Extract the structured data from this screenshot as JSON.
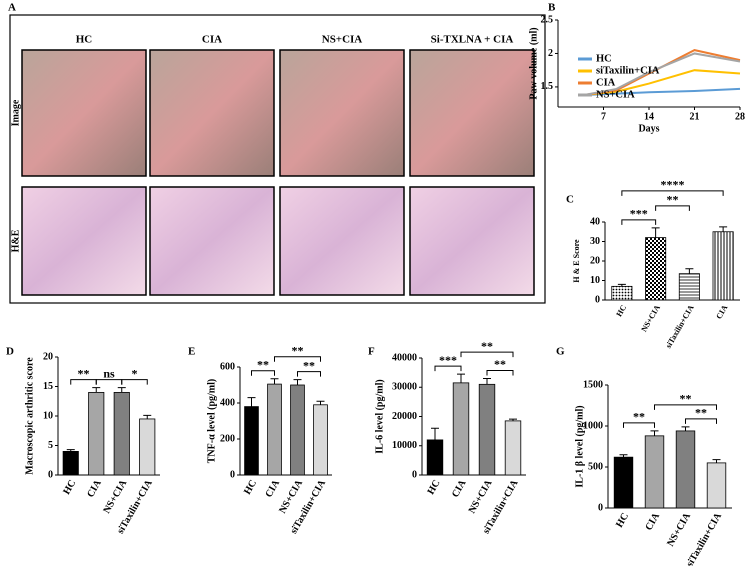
{
  "panel_a": {
    "label": "A",
    "columns": [
      "HC",
      "CIA",
      "NS+CIA",
      "Si-TXLNA + CIA"
    ],
    "rows": [
      "Image",
      "H&E"
    ]
  },
  "chart_data": [
    {
      "label": "B",
      "type": "line",
      "x_label": "Days",
      "y_label": "Paw volume (ml)",
      "x": [
        4,
        9,
        14,
        21,
        28
      ],
      "xlim": [
        0,
        28
      ],
      "xticks": [
        7,
        14,
        21,
        28
      ],
      "ylim": [
        1.2,
        2.5
      ],
      "yticks": [
        1.5,
        2,
        2.5
      ],
      "legend": "lower-left",
      "series": [
        {
          "name": "HC",
          "color": "#5b9bd5",
          "values": [
            1.38,
            1.4,
            1.42,
            1.44,
            1.47
          ]
        },
        {
          "name": "siTaxilin+CIA",
          "color": "#ffc000",
          "values": [
            1.38,
            1.43,
            1.55,
            1.75,
            1.7
          ]
        },
        {
          "name": "CIA",
          "color": "#ed7d31",
          "values": [
            1.38,
            1.45,
            1.7,
            2.05,
            1.9
          ]
        },
        {
          "name": "NS+CIA",
          "color": "#a5a5a5",
          "values": [
            1.38,
            1.47,
            1.72,
            2.0,
            1.88
          ]
        }
      ]
    },
    {
      "label": "C",
      "type": "bar",
      "y_label": "H & E Score",
      "categories": [
        "HC",
        "NS+CIA",
        "siTaxilin+CIA",
        "CIA"
      ],
      "values": [
        7,
        32,
        13.5,
        35
      ],
      "errors": [
        1,
        5,
        2.5,
        2.5
      ],
      "patterns": [
        "dots",
        "checker",
        "hlines",
        "vlines"
      ],
      "ylim": [
        0,
        40
      ],
      "yticks": [
        0,
        10,
        20,
        30,
        40
      ],
      "annotations": [
        "***",
        "**",
        "****"
      ]
    },
    {
      "label": "D",
      "type": "bar",
      "y_label": "Macroscopic arthritic score",
      "categories": [
        "HC",
        "CIA",
        "NS+CIA",
        "siTaxilin+CIA"
      ],
      "values": [
        4,
        14,
        14,
        9.5
      ],
      "errors": [
        0.3,
        0.8,
        0.8,
        0.6
      ],
      "colors": [
        "#000000",
        "#a6a6a6",
        "#808080",
        "#d9d9d9"
      ],
      "ylim": [
        0,
        20
      ],
      "yticks": [
        0,
        5,
        10,
        15,
        20
      ],
      "annotations": [
        "**",
        "ns",
        "*"
      ]
    },
    {
      "label": "E",
      "type": "bar",
      "y_label": "TNF-α level (pg/ml)",
      "categories": [
        "HC",
        "CIA",
        "NS+CIA",
        "siTaxilin+CIA"
      ],
      "values": [
        380,
        505,
        500,
        390
      ],
      "errors": [
        50,
        30,
        30,
        20
      ],
      "colors": [
        "#000000",
        "#a6a6a6",
        "#808080",
        "#d9d9d9"
      ],
      "ylim": [
        0,
        600
      ],
      "yticks": [
        0,
        200,
        400,
        600
      ],
      "annotations": [
        "**",
        "**",
        "**"
      ]
    },
    {
      "label": "F",
      "type": "bar",
      "y_label": "IL-6 level (pg/ml)",
      "categories": [
        "HC",
        "CIA",
        "NS+CIA",
        "siTaxilin+CIA"
      ],
      "values": [
        12000,
        31500,
        31000,
        18500
      ],
      "errors": [
        4000,
        3000,
        2000,
        600
      ],
      "colors": [
        "#000000",
        "#a6a6a6",
        "#808080",
        "#d9d9d9"
      ],
      "ylim": [
        0,
        40000
      ],
      "yticks": [
        0,
        10000,
        20000,
        30000,
        40000
      ],
      "annotations": [
        "***",
        "**",
        "**"
      ]
    },
    {
      "label": "G",
      "type": "bar",
      "y_label": "IL-1 β level (pg/ml)",
      "categories": [
        "HC",
        "CIA",
        "NS+CIA",
        "siTaxilin+CIA"
      ],
      "values": [
        620,
        880,
        940,
        550
      ],
      "errors": [
        30,
        60,
        50,
        40
      ],
      "colors": [
        "#000000",
        "#a6a6a6",
        "#808080",
        "#d9d9d9"
      ],
      "ylim": [
        0,
        1500
      ],
      "yticks": [
        0,
        500,
        1000,
        1500
      ],
      "annotations": [
        "**",
        "**",
        "**"
      ]
    }
  ]
}
